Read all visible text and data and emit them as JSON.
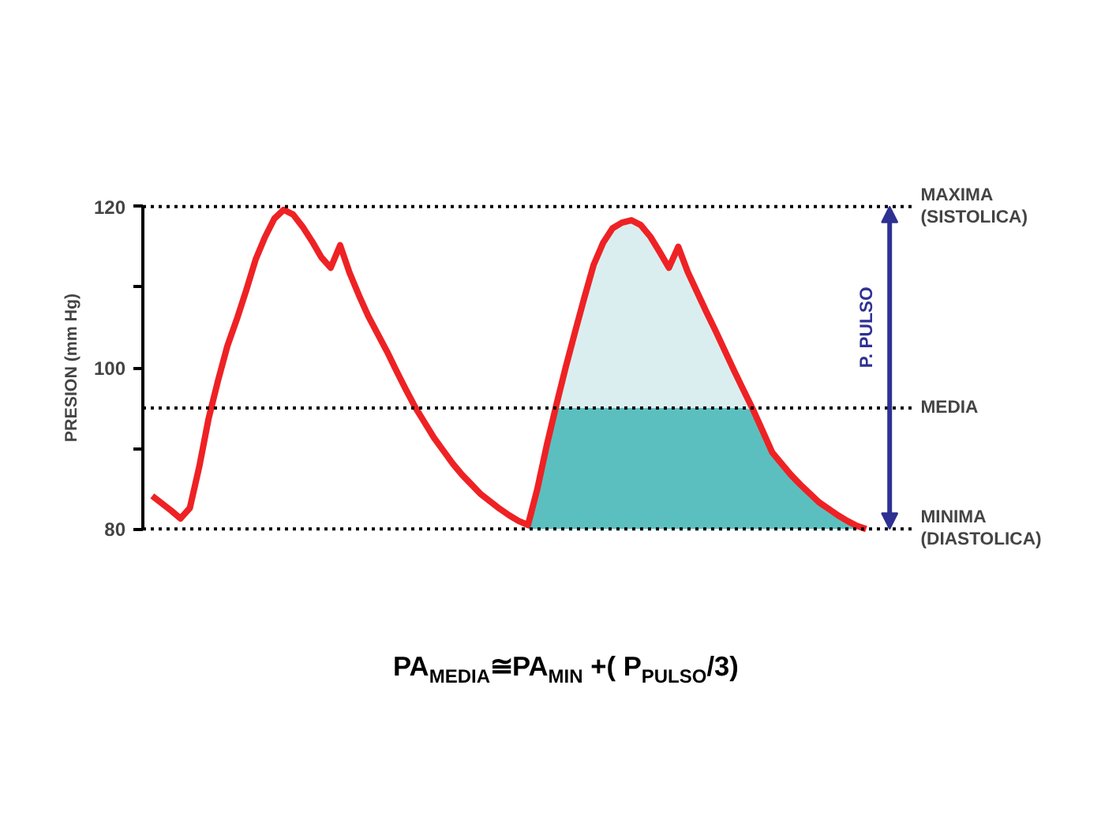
{
  "chart_data": {
    "type": "line",
    "ylabel": "PRESION (mm Hg)",
    "categories": [
      null,
      null,
      null,
      null,
      null,
      null,
      null,
      null,
      null,
      null,
      null,
      null,
      null,
      null,
      null,
      null,
      null,
      null,
      null,
      null,
      null,
      null,
      null,
      null,
      null,
      null,
      null,
      null,
      null,
      null,
      null,
      null,
      null,
      null,
      null,
      null,
      null,
      null,
      null,
      null,
      null,
      null,
      null,
      null,
      null,
      null,
      null,
      null,
      null,
      null,
      null,
      null,
      null,
      null,
      null,
      null,
      null,
      null,
      null,
      null,
      null,
      null,
      null,
      null,
      null,
      null,
      null,
      null,
      null,
      null,
      null,
      null,
      null,
      null,
      null,
      null,
      null
    ],
    "series": [
      {
        "type": "area",
        "color": "#daeef0",
        "values": [
          null,
          null,
          null,
          null,
          null,
          null,
          null,
          null,
          null,
          null,
          null,
          null,
          null,
          null,
          null,
          null,
          null,
          null,
          null,
          null,
          null,
          null,
          null,
          null,
          null,
          null,
          null,
          null,
          null,
          null,
          null,
          null,
          null,
          null,
          null,
          null,
          null,
          null,
          null,
          null,
          80.5,
          85.0,
          90.4,
          95.3,
          100.0,
          104.4,
          108.7,
          112.8,
          115.5,
          117.3,
          118.0,
          118.3,
          117.7,
          116.3,
          114.4,
          112.4,
          115.0,
          111.9,
          109.4,
          106.9,
          104.5,
          102.0,
          99.5,
          97.1,
          94.7,
          92.1,
          89.5,
          88.1,
          86.7,
          85.5,
          84.4,
          83.3,
          82.5,
          81.7,
          81.0,
          80.4,
          80.0
        ]
      },
      {
        "type": "area",
        "color": "#5cbfbf",
        "values": [
          null,
          null,
          null,
          null,
          null,
          null,
          null,
          null,
          null,
          null,
          null,
          null,
          null,
          null,
          null,
          null,
          null,
          null,
          null,
          null,
          null,
          null,
          null,
          null,
          null,
          null,
          null,
          null,
          null,
          null,
          null,
          null,
          null,
          null,
          null,
          null,
          null,
          null,
          null,
          null,
          80.5,
          85.0,
          90.4,
          95.0,
          95.0,
          95.0,
          95.0,
          95.0,
          95.0,
          95.0,
          95.0,
          95.0,
          95.0,
          95.0,
          95.0,
          95.0,
          95.0,
          95.0,
          95.0,
          95.0,
          95.0,
          95.0,
          95.0,
          95.0,
          94.7,
          92.1,
          89.5,
          88.1,
          86.7,
          85.5,
          84.4,
          83.3,
          82.5,
          81.7,
          81.0,
          80.4,
          80.0
        ]
      },
      {
        "color": "#ee2224",
        "values": [
          84.1,
          83.2,
          82.3,
          81.3,
          82.6,
          87.7,
          93.7,
          98.4,
          102.7,
          106.0,
          109.6,
          113.4,
          116.2,
          118.5,
          119.6,
          119.0,
          117.5,
          115.7,
          113.7,
          112.4,
          115.2,
          111.8,
          109.0,
          106.4,
          104.2,
          102.0,
          99.6,
          97.3,
          95.1,
          93.2,
          91.3,
          89.7,
          88.1,
          86.7,
          85.5,
          84.3,
          83.4,
          82.5,
          81.7,
          81.0,
          80.5,
          85.0,
          90.4,
          95.3,
          100.0,
          104.4,
          108.7,
          112.8,
          115.5,
          117.3,
          118.0,
          118.3,
          117.7,
          116.3,
          114.4,
          112.4,
          115.0,
          111.9,
          109.4,
          106.9,
          104.5,
          102.0,
          99.5,
          97.1,
          94.7,
          92.1,
          89.5,
          88.1,
          86.7,
          85.5,
          84.4,
          83.3,
          82.5,
          81.7,
          81.0,
          80.4,
          80.0
        ]
      }
    ],
    "ylim": [
      80,
      120
    ],
    "yticks": [
      80,
      {
        "value": 90,
        "label": null
      },
      100,
      {
        "value": 110,
        "label": null
      },
      120
    ],
    "tick_labels": "y",
    "ref_lines": [
      {
        "axis": "y",
        "value": 120,
        "label": "MAXIMA\n(SISTOLICA)",
        "color": "#000000",
        "line_style": "dotted"
      },
      {
        "axis": "y",
        "value": 95,
        "label": "MEDIA",
        "color": "#000000",
        "line_style": "dotted"
      },
      {
        "axis": "y",
        "value": 80,
        "label": "MINIMA\n(DIASTOLICA)",
        "color": "#000000",
        "line_style": "dotted"
      }
    ],
    "annotations": [
      "P. PULSO",
      "PA$_{MEDIA}$≅PA$_{MIN}$ +( P$_{PULSO}$/3)"
    ]
  }
}
